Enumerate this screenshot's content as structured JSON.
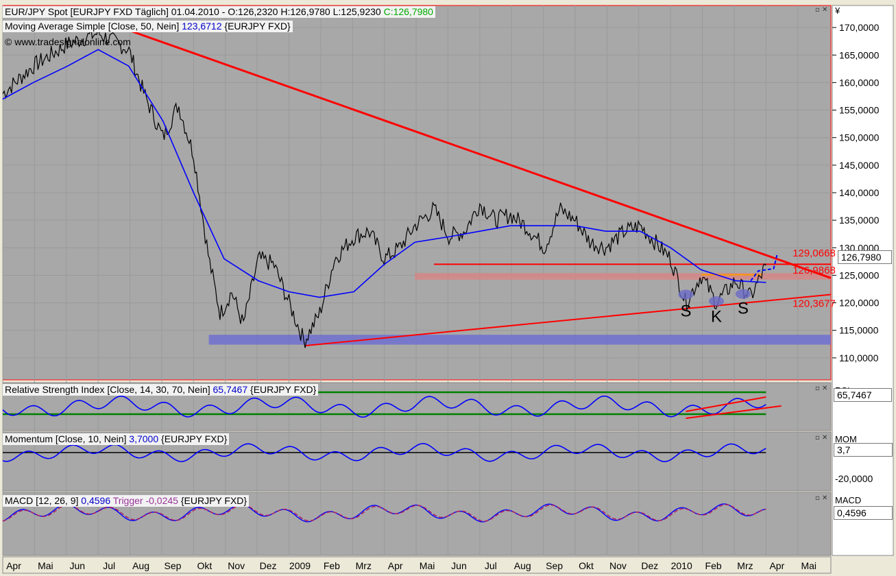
{
  "panels": {
    "price": {
      "title_symbol": "EUR/JPY Spot [EURJPY FXD  Täglich] 01.04.2010 - O:126,2320 H:126,9780 L:125,9230",
      "title_close": "C:126,7980",
      "ma_name": "Moving Average Simple [Close, 50, Nein]",
      "ma_value": "123,6712",
      "ma_suffix": "{EURJPY FXD}",
      "copyright": "© www.tradesignalonline.com",
      "current_price": "126,7980",
      "currency": "¥",
      "annotations": [
        {
          "text": "129,0668",
          "price": 129.07,
          "date": 2010.23
        },
        {
          "text": "126,9868",
          "price": 125.9,
          "date": 2010.23
        },
        {
          "text": "120,3677",
          "price": 119.9,
          "date": 2010.23
        }
      ],
      "pattern_labels": [
        "S",
        "K",
        "S"
      ],
      "yticks": [
        "170,0000",
        "165,0000",
        "160,0000",
        "155,0000",
        "150,0000",
        "145,0000",
        "140,0000",
        "135,0000",
        "130,0000",
        "125,0000",
        "120,0000",
        "115,0000",
        "110,0000"
      ]
    },
    "rsi": {
      "title": "Relative Strength Index [Close, 14, 30, 70, Nein]",
      "value": "65,7467",
      "suffix": "{EURJPY FXD}",
      "axis_label": "RSI",
      "axis_value": "65,7467"
    },
    "momentum": {
      "title": "Momentum [Close, 10, Nein]",
      "value": "3,7000",
      "suffix": "{EURJPY FXD}",
      "axis_label": "MOM",
      "axis_value": "3,7",
      "axis_tick": "-20,0000"
    },
    "macd": {
      "title": "MACD [12, 26, 9]",
      "value": "0,4596",
      "trigger_label": "Trigger",
      "trigger_value": "-0,0245",
      "suffix": "{EURJPY FXD}",
      "axis_label": "MACD",
      "axis_value": "0,4596"
    }
  },
  "xaxis": {
    "labels": [
      "Apr",
      "Mai",
      "Jun",
      "Jul",
      "Aug",
      "Sep",
      "Okt",
      "Nov",
      "Dez",
      "2009",
      "Feb",
      "Mrz",
      "Apr",
      "Mai",
      "Jun",
      "Jul",
      "Aug",
      "Sep",
      "Okt",
      "Nov",
      "Dez",
      "2010",
      "Feb",
      "Mrz",
      "Apr",
      "Mai"
    ]
  },
  "colors": {
    "panel_bg": "#a8a8a8",
    "price_line": "#000000",
    "ma_line": "#0000ff",
    "trend_lines": "#ff0000",
    "band": "#7070d0",
    "rsi_bounds": "#008000"
  },
  "chart_data": {
    "type": "line",
    "x_range": [
      "2008-04",
      "2010-05"
    ],
    "ylim": [
      106,
      174
    ],
    "series": [
      {
        "name": "EUR/JPY Spot",
        "x": [
          2008.25,
          2008.33,
          2008.42,
          2008.5,
          2008.58,
          2008.62,
          2008.67,
          2008.71,
          2008.75,
          2008.79,
          2008.82,
          2008.85,
          2008.88,
          2008.92,
          2008.96,
          2009.0,
          2009.04,
          2009.08,
          2009.12,
          2009.17,
          2009.21,
          2009.25,
          2009.29,
          2009.33,
          2009.38,
          2009.42,
          2009.46,
          2009.5,
          2009.54,
          2009.58,
          2009.62,
          2009.67,
          2009.71,
          2009.75,
          2009.79,
          2009.83,
          2009.88,
          2009.92,
          2009.96,
          2010.0,
          2010.04,
          2010.08,
          2010.12,
          2010.17,
          2010.21,
          2010.25
        ],
        "y": [
          158,
          163,
          167,
          169,
          166,
          158,
          150,
          156,
          147,
          128,
          118,
          122,
          116,
          128,
          127,
          120,
          113,
          118,
          128,
          132,
          133,
          128,
          130,
          134,
          137,
          132,
          133,
          138,
          135,
          136,
          134,
          130,
          137,
          135,
          131,
          130,
          133,
          134,
          131,
          128,
          120,
          125,
          120,
          124,
          121,
          126.8
        ]
      },
      {
        "name": "Moving Average Simple [Close, 50, Nein]",
        "x": [
          2008.25,
          2008.33,
          2008.42,
          2008.5,
          2008.58,
          2008.67,
          2008.75,
          2008.83,
          2008.92,
          2009.0,
          2009.08,
          2009.17,
          2009.25,
          2009.33,
          2009.42,
          2009.5,
          2009.58,
          2009.67,
          2009.75,
          2009.83,
          2009.92,
          2010.0,
          2010.08,
          2010.17,
          2010.25
        ],
        "y": [
          157,
          160,
          163,
          166,
          163,
          153,
          140,
          128,
          124,
          122,
          121,
          122,
          127,
          131,
          132,
          133,
          134,
          134,
          134,
          133,
          133,
          130,
          126,
          124,
          123.7
        ]
      }
    ]
  }
}
